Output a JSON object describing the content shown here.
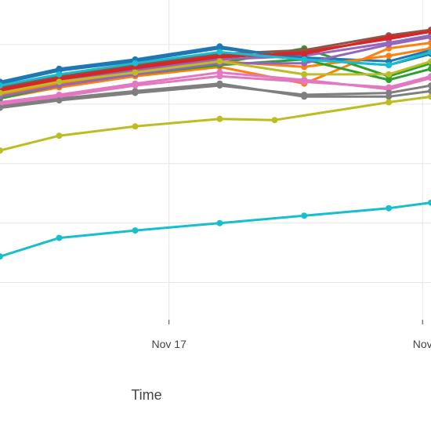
{
  "chart_data": {
    "type": "line",
    "xlabel": "Time",
    "ylabel": "",
    "x_tick_labels": [
      "Nov 17",
      "Nov"
    ],
    "x_ticks": [
      2,
      5
    ],
    "xlim": [
      0,
      5.1
    ],
    "ylim": [
      -1,
      7.6
    ],
    "grid": true,
    "legend": "none",
    "series": [
      {
        "color": "#1f77b4",
        "x": [
          0,
          0.7,
          1.6,
          2.6,
          3.6,
          4.6,
          5.1
        ],
        "y": [
          5.4,
          5.75,
          6.0,
          6.35,
          6.0,
          5.85,
          6.15
        ]
      },
      {
        "color": "#ff7f0e",
        "x": [
          0,
          0.7,
          1.6,
          2.6,
          3.6,
          4.6,
          5.1
        ],
        "y": [
          4.95,
          5.25,
          5.55,
          5.8,
          5.35,
          6.3,
          6.45
        ]
      },
      {
        "color": "#2ca02c",
        "x": [
          0,
          0.7,
          1.6,
          2.6,
          3.6,
          4.6,
          5.1
        ],
        "y": [
          5.0,
          5.35,
          5.6,
          5.9,
          6.3,
          5.55,
          5.9
        ]
      },
      {
        "color": "#d62728",
        "x": [
          0,
          0.7,
          1.6,
          2.6,
          3.6,
          4.6,
          5.1
        ],
        "y": [
          5.15,
          5.45,
          5.75,
          6.05,
          6.2,
          6.55,
          6.75
        ]
      },
      {
        "color": "#9467bd",
        "x": [
          0,
          0.7,
          1.6,
          2.6,
          3.6,
          4.6,
          5.1
        ],
        "y": [
          5.1,
          5.4,
          5.7,
          6.0,
          6.1,
          6.45,
          6.65
        ]
      },
      {
        "color": "#8c564b",
        "x": [
          0,
          0.7,
          1.6,
          2.6,
          3.6,
          4.6,
          5.1
        ],
        "y": [
          5.25,
          5.55,
          5.85,
          6.15,
          6.25,
          6.65,
          6.8
        ]
      },
      {
        "color": "#e377c2",
        "x": [
          0,
          0.7,
          1.6,
          2.6,
          3.6,
          4.6,
          5.1
        ],
        "y": [
          4.85,
          5.05,
          5.35,
          5.65,
          5.45,
          5.2,
          5.5
        ]
      },
      {
        "color": "#7f7f7f",
        "x": [
          0,
          0.7,
          1.6,
          2.6,
          3.6,
          4.6,
          5.1
        ],
        "y": [
          4.75,
          4.95,
          5.15,
          5.35,
          5.0,
          5.0,
          5.15
        ]
      },
      {
        "color": "#bcbd22",
        "x": [
          0,
          0.7,
          1.6,
          2.6,
          3.25,
          4.6,
          5.1
        ],
        "y": [
          3.55,
          3.95,
          4.2,
          4.4,
          4.37,
          4.85,
          5.0
        ]
      },
      {
        "color": "#17becf",
        "x": [
          0,
          0.7,
          1.6,
          2.6,
          3.6,
          4.6,
          5.1
        ],
        "y": [
          0.7,
          1.2,
          1.4,
          1.6,
          1.8,
          2.0,
          2.15
        ]
      },
      {
        "color": "#1f77b4",
        "x": [
          0,
          0.7,
          1.6,
          2.6,
          3.6,
          4.6,
          5.1
        ],
        "y": [
          5.35,
          5.7,
          5.95,
          6.3,
          6.05,
          5.95,
          6.25
        ]
      },
      {
        "color": "#ff7f0e",
        "x": [
          0,
          0.7,
          1.6,
          2.6,
          3.6,
          4.6,
          5.1
        ],
        "y": [
          5.05,
          5.35,
          5.65,
          5.95,
          5.8,
          6.1,
          6.3
        ]
      },
      {
        "color": "#2ca02c",
        "x": [
          0,
          0.7,
          1.6,
          2.6,
          3.6,
          4.6,
          5.1
        ],
        "y": [
          4.95,
          5.3,
          5.6,
          5.85,
          6.0,
          5.45,
          5.75
        ]
      },
      {
        "color": "#d62728",
        "x": [
          0,
          0.7,
          1.6,
          2.6,
          3.6,
          4.6,
          5.1
        ],
        "y": [
          5.2,
          5.5,
          5.8,
          6.1,
          6.15,
          6.6,
          6.75
        ]
      },
      {
        "color": "#9467bd",
        "x": [
          0,
          0.7,
          1.6,
          2.6,
          3.6,
          4.6,
          5.1
        ],
        "y": [
          5.0,
          5.3,
          5.6,
          5.9,
          5.9,
          6.4,
          6.6
        ]
      },
      {
        "color": "#bcbd22",
        "x": [
          0,
          0.7,
          1.6,
          2.6,
          3.6,
          4.6,
          5.1
        ],
        "y": [
          5.1,
          5.4,
          5.65,
          5.95,
          5.6,
          5.6,
          5.95
        ]
      },
      {
        "color": "#17becf",
        "x": [
          0,
          0.7,
          1.6,
          2.6,
          3.6,
          4.6,
          5.1
        ],
        "y": [
          5.3,
          5.6,
          5.9,
          6.2,
          6.0,
          5.85,
          6.2
        ]
      },
      {
        "color": "#e377c2",
        "x": [
          0,
          0.7,
          1.6,
          2.6,
          3.6,
          4.6,
          5.1
        ],
        "y": [
          4.8,
          5.0,
          5.3,
          5.55,
          5.4,
          5.25,
          5.55
        ]
      },
      {
        "color": "#7f7f7f",
        "x": [
          0,
          0.7,
          1.6,
          2.6,
          3.6,
          4.6,
          5.1
        ],
        "y": [
          4.7,
          4.9,
          5.1,
          5.3,
          5.05,
          5.1,
          5.3
        ]
      }
    ]
  }
}
